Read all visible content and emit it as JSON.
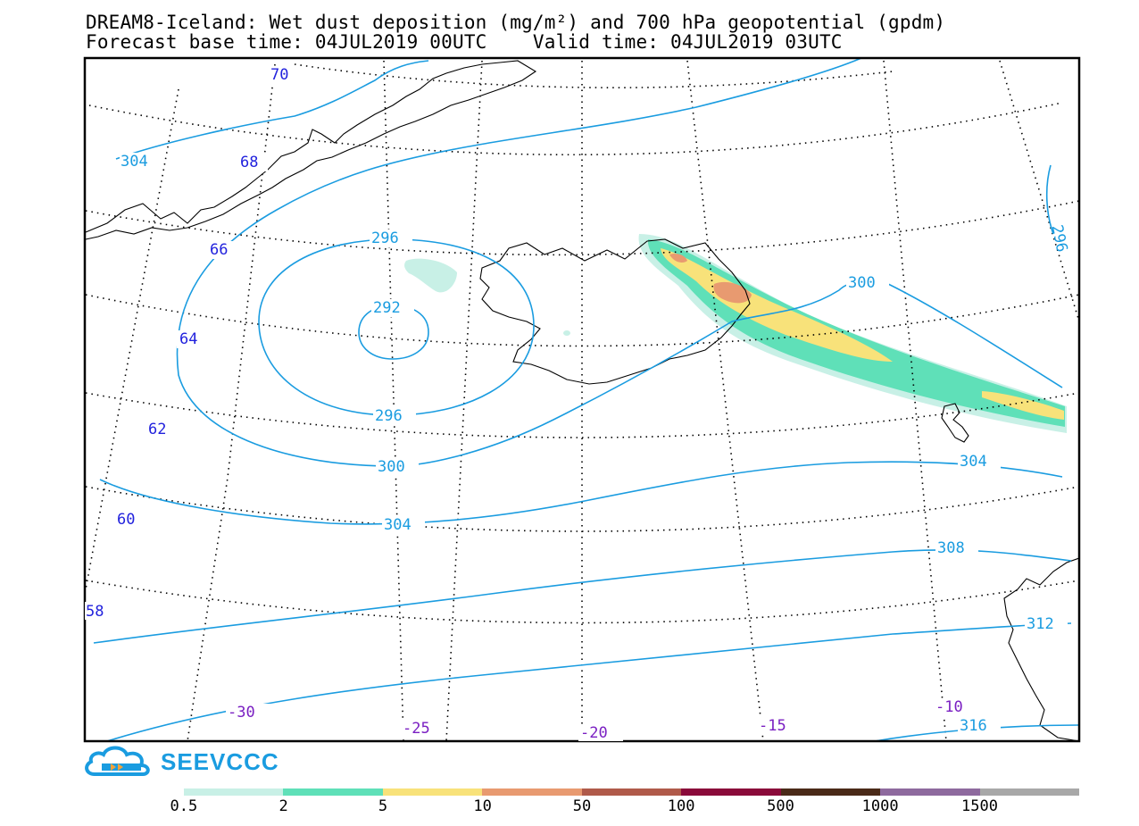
{
  "title": {
    "line1": "DREAM8-Iceland: Wet dust deposition (mg/m²) and 700 hPa geopotential (gpdm)",
    "line2": "Forecast base time: 04JUL2019 00UTC    Valid time: 04JUL2019 03UTC"
  },
  "logo": {
    "text": "SEEVCCC",
    "icon": "cloud-icon",
    "color": "#1a9ce0"
  },
  "map": {
    "latitude_labels": [
      "70",
      "68",
      "66",
      "64",
      "62",
      "60",
      "58"
    ],
    "longitude_labels": [
      "-30",
      "-25",
      "-20",
      "-15",
      "-10"
    ],
    "latitude_label_color": "#2222dd",
    "longitude_label_color": "#7a1fc2",
    "contour_color": "#1a9ce0",
    "contour_labels": [
      "304",
      "296",
      "292",
      "296",
      "300",
      "304",
      "300",
      "296",
      "304",
      "308",
      "312",
      "316"
    ],
    "graticule": "dotted",
    "coastline_color": "#000000",
    "deposition_region": "plume east of Iceland extending southeast"
  },
  "legend": {
    "ticks": [
      "0.5",
      "2",
      "5",
      "10",
      "50",
      "100",
      "500",
      "1000",
      "1500"
    ],
    "colors": [
      "#c8f0e6",
      "#5fe0b8",
      "#f8e27a",
      "#e89a70",
      "#b05a4a",
      "#8a0a3a",
      "#4a2a18",
      "#8e6a9e",
      "#a8a8a8"
    ]
  }
}
